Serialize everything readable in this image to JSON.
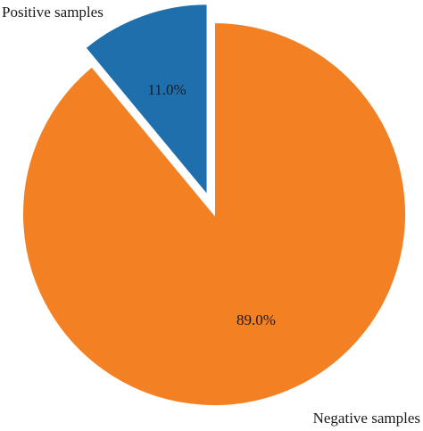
{
  "chart_data": {
    "type": "pie",
    "categories": [
      "Positive samples",
      "Negative samples"
    ],
    "values": [
      11.0,
      89.0
    ],
    "percent_labels": [
      "11.0%",
      "89.0%"
    ],
    "colors": [
      "#1f6fad",
      "#f48024"
    ],
    "exploded": [
      true,
      false
    ],
    "start_angle": "12 o'clock",
    "direction": "counter-clockwise for positive slice",
    "legend": "none; category labels at slice edges"
  }
}
